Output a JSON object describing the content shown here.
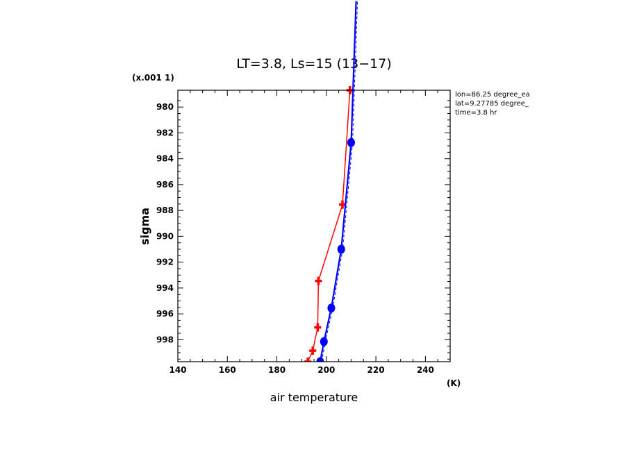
{
  "chart_data": {
    "type": "line",
    "title": "LT=3.8, Ls=15 (13−17)",
    "xlabel": "air temperature",
    "ylabel": "sigma",
    "x_unit": "(K)",
    "y_scale_note": "(x.001 1)",
    "xlim": [
      140,
      250
    ],
    "ylim": [
      999.7,
      978.7
    ],
    "y_inverted": true,
    "grid": false,
    "legend": "none",
    "xticks": [
      140,
      160,
      180,
      200,
      220,
      240
    ],
    "yticks": [
      980,
      982,
      984,
      986,
      988,
      990,
      992,
      994,
      996,
      998
    ],
    "annotations": [
      "lon=86.25 degree_ea",
      "lat=9.27785 degree_",
      "time=3.8 hr"
    ],
    "series": [
      {
        "color": "#ff0000",
        "marker": "plus",
        "points": [
          {
            "x": 192.5,
            "y": 999.7
          },
          {
            "x": 194.5,
            "y": 998.85
          },
          {
            "x": 196.5,
            "y": 997.05
          },
          {
            "x": 196.8,
            "y": 993.45
          },
          {
            "x": 206.5,
            "y": 987.55
          },
          {
            "x": 209.5,
            "y": 978.7
          }
        ]
      },
      {
        "color": "#0000ff",
        "marker": "circle",
        "points": [
          {
            "x": 197.5,
            "y": 999.7
          },
          {
            "x": 199.0,
            "y": 998.15
          },
          {
            "x": 202.0,
            "y": 995.55
          },
          {
            "x": 206.0,
            "y": 991.0
          },
          {
            "x": 210.0,
            "y": 982.75
          },
          {
            "x": 212.0,
            "y": 971.8
          }
        ]
      }
    ]
  }
}
